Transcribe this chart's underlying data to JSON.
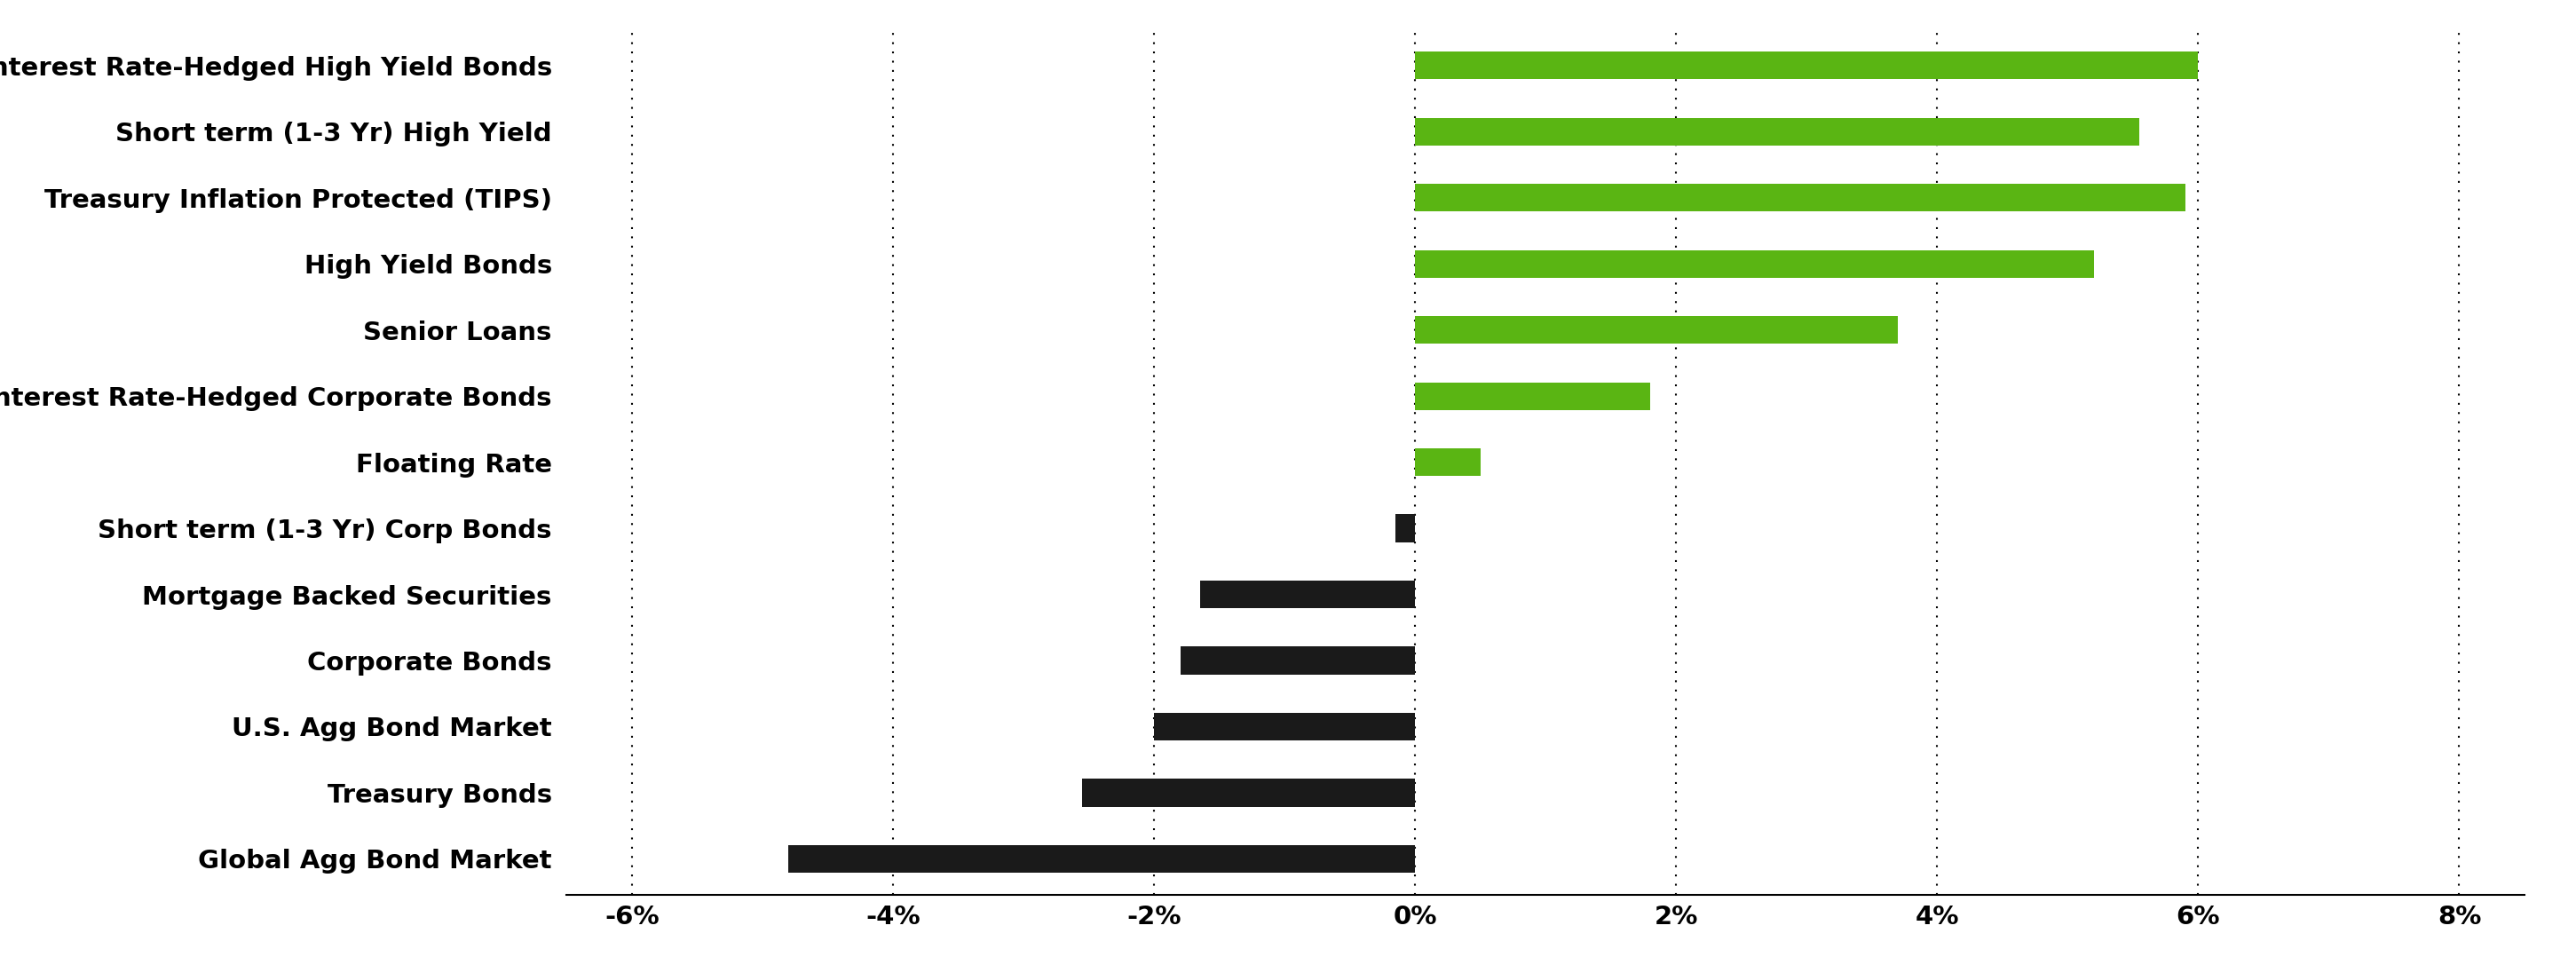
{
  "categories": [
    "Global Agg Bond Market",
    "Treasury Bonds",
    "U.S. Agg Bond Market",
    "Corporate Bonds",
    "Mortgage Backed Securities",
    "Short term (1-3 Yr) Corp Bonds",
    "Floating Rate",
    "Interest Rate-Hedged Corporate Bonds",
    "Senior Loans",
    "High Yield Bonds",
    "Treasury Inflation Protected (TIPS)",
    "Short term (1-3 Yr) High Yield",
    "Interest Rate-Hedged High Yield Bonds"
  ],
  "values": [
    -4.8,
    -2.55,
    -2.0,
    -1.8,
    -1.65,
    -0.15,
    0.5,
    1.8,
    3.7,
    5.2,
    5.9,
    5.55,
    6.0
  ],
  "bar_colors_positive": "#5ab513",
  "bar_colors_negative": "#1a1a1a",
  "background_color": "#ffffff",
  "xlim": [
    -6.5,
    8.5
  ],
  "xticks": [
    -6,
    -4,
    -2,
    0,
    2,
    4,
    6,
    8
  ],
  "xtick_labels": [
    "-6%",
    "-4%",
    "-2%",
    "0%",
    "2%",
    "4%",
    "6%",
    "8%"
  ],
  "grid_color": "#000000",
  "label_fontsize": 21,
  "tick_fontsize": 21,
  "bar_height": 0.42
}
